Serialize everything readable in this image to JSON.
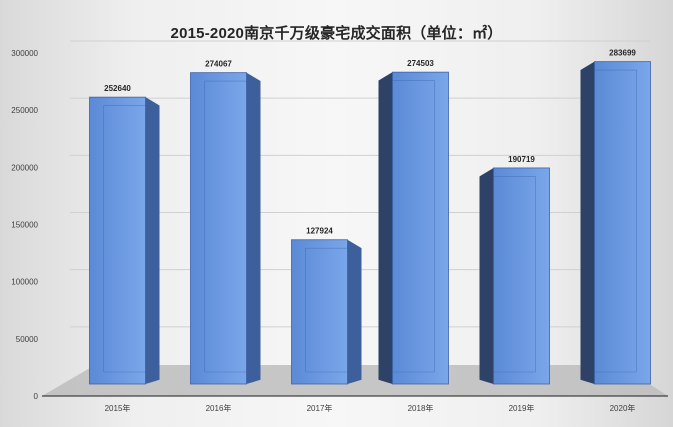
{
  "title": "2015-2020南京千万级豪宅成交面积（单位：㎡）",
  "colors": {
    "bar_front": "#5b8ad6",
    "bar_front_light": "#7aa6ea",
    "bar_side": "#3d5f9b",
    "bar_side_dark": "#2e4166",
    "floor": "#bdbdbd",
    "axis": "#404040"
  },
  "chart_data": {
    "type": "bar",
    "title": "2015-2020南京千万级豪宅成交面积（单位：㎡）",
    "categories": [
      "2015年",
      "2016年",
      "2017年",
      "2018年",
      "2019年",
      "2020年"
    ],
    "values": [
      252640,
      274067,
      127924,
      274503,
      190719,
      283699
    ],
    "data_labels": [
      "252640",
      "274067",
      "127924",
      "274503",
      "190719",
      "283699"
    ],
    "xlabel": "",
    "ylabel": "",
    "ylim": [
      0,
      300000
    ],
    "yticks": [
      0,
      50000,
      100000,
      150000,
      200000,
      250000,
      300000
    ],
    "ytick_labels": [
      "0",
      "50000",
      "100000",
      "150000",
      "200000",
      "250000",
      "300000"
    ],
    "grid": true,
    "legend": "none",
    "style": "3d-column"
  }
}
